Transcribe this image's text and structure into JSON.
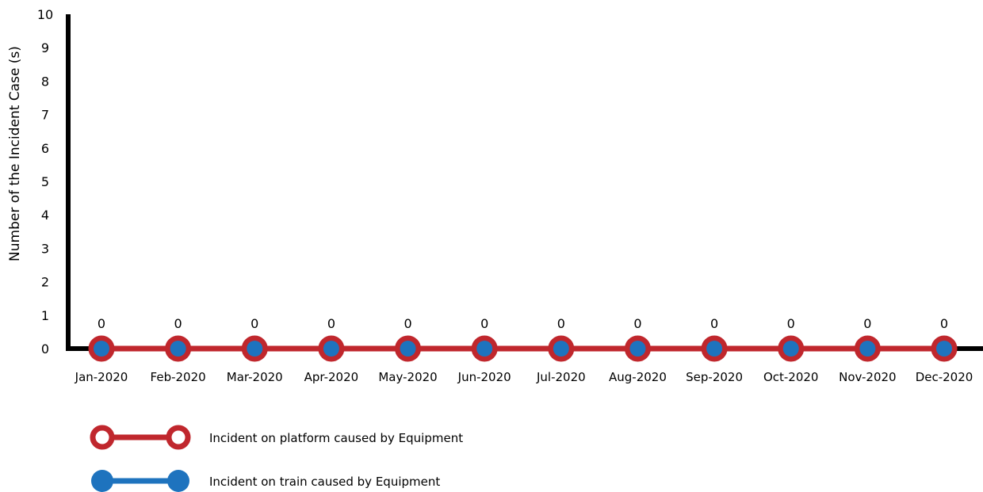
{
  "chart_data": {
    "type": "line",
    "categories": [
      "Jan-2020",
      "Feb-2020",
      "Mar-2020",
      "Apr-2020",
      "May-2020",
      "Jun-2020",
      "Jul-2020",
      "Aug-2020",
      "Sep-2020",
      "Oct-2020",
      "Nov-2020",
      "Dec-2020"
    ],
    "series": [
      {
        "name": "Incident on platform caused by Equipment",
        "values": [
          0,
          0,
          0,
          0,
          0,
          0,
          0,
          0,
          0,
          0,
          0,
          0
        ],
        "color": "#c0272d",
        "marker": "hollow-circle"
      },
      {
        "name": "Incident on train caused by Equipment",
        "values": [
          0,
          0,
          0,
          0,
          0,
          0,
          0,
          0,
          0,
          0,
          0,
          0
        ],
        "color": "#1e73be",
        "marker": "filled-circle"
      }
    ],
    "data_labels": [
      0,
      0,
      0,
      0,
      0,
      0,
      0,
      0,
      0,
      0,
      0,
      0
    ],
    "ylabel": "Number of the Incident Case (s)",
    "xlabel": "",
    "ylim": [
      0,
      10
    ],
    "yticks": [
      0,
      1,
      2,
      3,
      4,
      5,
      6,
      7,
      8,
      9,
      10
    ],
    "grid": false,
    "legend_position": "bottom-left"
  }
}
